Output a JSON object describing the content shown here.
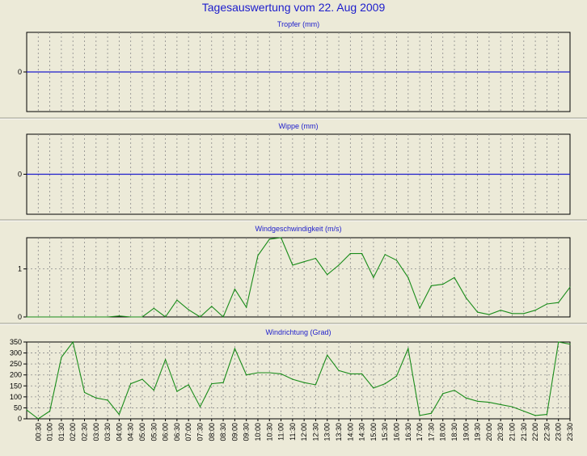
{
  "title": "Tagesauswertung vom 22. Aug 2009",
  "colors": {
    "background": "#ecead8",
    "plot_background": "#ecead8",
    "title_color": "#1c1ccc",
    "zero_line": "#1c1ccc",
    "series_line": "#1a8c1a",
    "grid": "#8a8a8a"
  },
  "x_ticks": [
    "00:30",
    "01:00",
    "01:30",
    "02:00",
    "02:30",
    "03:00",
    "03:30",
    "04:00",
    "04:30",
    "05:00",
    "05:30",
    "06:00",
    "06:30",
    "07:00",
    "07:30",
    "08:00",
    "08:30",
    "09:00",
    "09:30",
    "10:00",
    "10:30",
    "11:00",
    "11:30",
    "12:00",
    "12:30",
    "13:00",
    "13:30",
    "14:00",
    "14:30",
    "15:00",
    "15:30",
    "16:00",
    "16:30",
    "17:00",
    "17:30",
    "18:00",
    "18:30",
    "19:00",
    "19:30",
    "20:00",
    "20:30",
    "21:00",
    "21:30",
    "22:00",
    "22:30",
    "23:00",
    "23:30"
  ],
  "chart_data": [
    {
      "type": "line",
      "title": "Tropfer (mm)",
      "y_ticks": [
        "0"
      ],
      "y_tick_values": [
        0
      ],
      "ylim": [
        -1,
        1
      ],
      "grid": true,
      "series": [
        {
          "values": [
            0,
            0,
            0,
            0,
            0,
            0,
            0,
            0,
            0,
            0,
            0,
            0,
            0,
            0,
            0,
            0,
            0,
            0,
            0,
            0,
            0,
            0,
            0,
            0,
            0,
            0,
            0,
            0,
            0,
            0,
            0,
            0,
            0,
            0,
            0,
            0,
            0,
            0,
            0,
            0,
            0,
            0,
            0,
            0,
            0,
            0,
            0,
            0
          ]
        }
      ]
    },
    {
      "type": "line",
      "title": "Wippe (mm)",
      "y_ticks": [
        "0"
      ],
      "y_tick_values": [
        0
      ],
      "ylim": [
        -1,
        1
      ],
      "grid": true,
      "series": [
        {
          "values": [
            0,
            0,
            0,
            0,
            0,
            0,
            0,
            0,
            0,
            0,
            0,
            0,
            0,
            0,
            0,
            0,
            0,
            0,
            0,
            0,
            0,
            0,
            0,
            0,
            0,
            0,
            0,
            0,
            0,
            0,
            0,
            0,
            0,
            0,
            0,
            0,
            0,
            0,
            0,
            0,
            0,
            0,
            0,
            0,
            0,
            0,
            0,
            0
          ]
        }
      ]
    },
    {
      "type": "line",
      "title": "Windgeschwindigkeit (m/s)",
      "y_ticks": [
        "0",
        "1"
      ],
      "y_tick_values": [
        0,
        1
      ],
      "ylim": [
        0,
        1.65
      ],
      "grid": true,
      "series": [
        {
          "values": [
            0,
            0,
            0,
            0,
            0,
            0,
            0,
            0,
            0.02,
            0,
            0,
            0.18,
            0,
            0.35,
            0.15,
            0,
            0.22,
            0,
            0.58,
            0.2,
            1.28,
            1.62,
            1.65,
            1.08,
            1.15,
            1.22,
            0.88,
            1.08,
            1.32,
            1.32,
            0.82,
            1.3,
            1.18,
            0.82,
            0.18,
            0.65,
            0.68,
            0.82,
            0.4,
            0.1,
            0.05,
            0.14,
            0.07,
            0.07,
            0.14,
            0.27,
            0.3,
            0.62
          ]
        }
      ]
    },
    {
      "type": "line",
      "title": "Windrichtung (Grad)",
      "y_ticks": [
        "0",
        "50",
        "100",
        "150",
        "200",
        "250",
        "300",
        "350"
      ],
      "y_tick_values": [
        0,
        50,
        100,
        150,
        200,
        250,
        300,
        350
      ],
      "ylim": [
        0,
        350
      ],
      "grid": true,
      "series": [
        {
          "values": [
            40,
            0,
            35,
            280,
            350,
            120,
            95,
            85,
            20,
            160,
            180,
            130,
            270,
            125,
            155,
            55,
            160,
            165,
            320,
            200,
            210,
            210,
            205,
            180,
            165,
            155,
            290,
            220,
            205,
            205,
            140,
            160,
            195,
            320,
            15,
            25,
            115,
            130,
            95,
            80,
            75,
            65,
            55,
            35,
            15,
            20,
            350,
            340
          ]
        }
      ]
    }
  ]
}
